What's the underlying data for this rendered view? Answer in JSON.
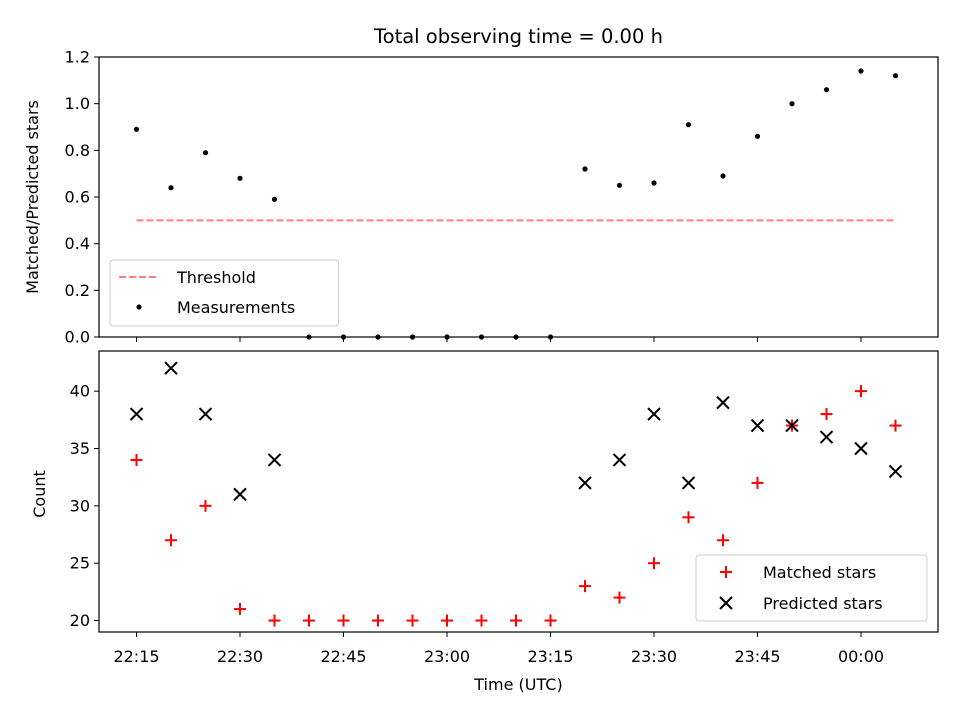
{
  "chart_data": [
    {
      "type": "scatter",
      "title": "Total observing time = 0.00 h",
      "xlabel": "",
      "ylabel": "Matched/Predicted stars",
      "ylim": [
        0,
        1.2
      ],
      "yticks": [
        "0.0",
        "0.2",
        "0.4",
        "0.6",
        "0.8",
        "1.0",
        "1.2"
      ],
      "x_unit": "minutes after 22:00 UTC",
      "x": [
        15,
        20,
        25,
        30,
        35,
        40,
        45,
        50,
        55,
        60,
        65,
        70,
        75,
        80,
        85,
        90,
        95,
        100,
        105,
        110,
        115,
        120,
        125
      ],
      "series": [
        {
          "name": "Threshold",
          "style": "dashed-line",
          "color": "#ff7f7f",
          "x": [
            15,
            125
          ],
          "values": [
            0.5,
            0.5
          ]
        },
        {
          "name": "Measurements",
          "style": "dot",
          "color": "#000000",
          "values": [
            0.89,
            0.64,
            0.79,
            0.68,
            0.59,
            0.0,
            0.0,
            0.0,
            0.0,
            0.0,
            0.0,
            0.0,
            0.0,
            0.72,
            0.65,
            0.66,
            0.91,
            0.69,
            0.86,
            1.0,
            1.06,
            1.14,
            1.12
          ]
        }
      ],
      "legend": "lower-left",
      "grid": false
    },
    {
      "type": "scatter",
      "title": "",
      "xlabel": "Time (UTC)",
      "ylabel": "Count",
      "ylim": [
        19,
        43.5
      ],
      "yticks": [
        "20",
        "25",
        "30",
        "35",
        "40"
      ],
      "xticks": [
        "22:15",
        "22:30",
        "22:45",
        "23:00",
        "23:15",
        "23:30",
        "23:45",
        "00:00"
      ],
      "x": [
        15,
        20,
        25,
        30,
        35,
        40,
        45,
        50,
        55,
        60,
        65,
        70,
        75,
        80,
        85,
        90,
        95,
        100,
        105,
        110,
        115,
        120,
        125
      ],
      "series": [
        {
          "name": "Matched stars",
          "marker": "+",
          "color": "#ff0000",
          "values": [
            34,
            27,
            30,
            21,
            20,
            20,
            20,
            20,
            20,
            20,
            20,
            20,
            20,
            23,
            22,
            25,
            29,
            27,
            32,
            37,
            38,
            40,
            37
          ]
        },
        {
          "name": "Predicted stars",
          "marker": "x",
          "color": "#000000",
          "x": [
            15,
            20,
            25,
            30,
            35,
            80,
            85,
            90,
            95,
            100,
            105,
            110,
            115,
            120,
            125
          ],
          "values": [
            38,
            42,
            38,
            31,
            34,
            32,
            34,
            38,
            32,
            39,
            37,
            37,
            36,
            35,
            33
          ]
        }
      ],
      "legend": "lower-right",
      "grid": false
    }
  ]
}
